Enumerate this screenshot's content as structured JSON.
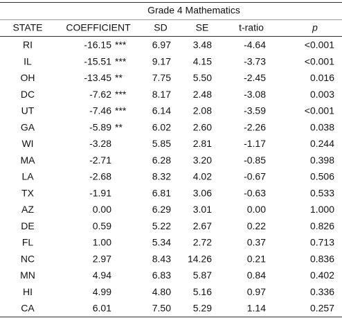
{
  "table": {
    "title": "Grade 4 Mathematics",
    "header": [
      "STATE",
      "COEFFICIENT",
      "SD",
      "SE",
      "t-ratio",
      "p"
    ],
    "rows": [
      {
        "state": "RI",
        "coefficient": "-16.15",
        "stars": "***",
        "sd": "6.97",
        "se": "3.48",
        "t_ratio": "-4.64",
        "p": "<0.001"
      },
      {
        "state": "IL",
        "coefficient": "-15.51",
        "stars": "***",
        "sd": "9.17",
        "se": "4.15",
        "t_ratio": "-3.73",
        "p": "<0.001"
      },
      {
        "state": "OH",
        "coefficient": "-13.45",
        "stars": "**",
        "sd": "7.75",
        "se": "5.50",
        "t_ratio": "-2.45",
        "p": "0.016"
      },
      {
        "state": "DC",
        "coefficient": "-7.62",
        "stars": "***",
        "sd": "8.17",
        "se": "2.48",
        "t_ratio": "-3.08",
        "p": "0.003"
      },
      {
        "state": "UT",
        "coefficient": "-7.46",
        "stars": "***",
        "sd": "6.14",
        "se": "2.08",
        "t_ratio": "-3.59",
        "p": "<0.001"
      },
      {
        "state": "GA",
        "coefficient": "-5.89",
        "stars": "**",
        "sd": "6.02",
        "se": "2.60",
        "t_ratio": "-2.26",
        "p": "0.038"
      },
      {
        "state": "WI",
        "coefficient": "-3.28",
        "sd": "5.85",
        "se": "2.81",
        "t_ratio": "-1.17",
        "p": "0.244"
      },
      {
        "state": "MA",
        "coefficient": "-2.71",
        "sd": "6.28",
        "se": "3.20",
        "t_ratio": "-0.85",
        "p": "0.398"
      },
      {
        "state": "LA",
        "coefficient": "-2.68",
        "sd": "8.32",
        "se": "4.02",
        "t_ratio": "-0.67",
        "p": "0.506"
      },
      {
        "state": "TX",
        "coefficient": "-1.91",
        "sd": "6.81",
        "se": "3.06",
        "t_ratio": "-0.63",
        "p": "0.533"
      },
      {
        "state": "AZ",
        "coefficient": "0.00",
        "sd": "6.29",
        "se": "3.01",
        "t_ratio": "0.00",
        "p": "1.000"
      },
      {
        "state": "DE",
        "coefficient": "0.59",
        "sd": "5.22",
        "se": "2.67",
        "t_ratio": "0.22",
        "p": "0.826"
      },
      {
        "state": "FL",
        "coefficient": "1.00",
        "sd": "5.34",
        "se": "2.72",
        "t_ratio": "0.37",
        "p": "0.713"
      },
      {
        "state": "NC",
        "coefficient": "2.97",
        "sd": "8.43",
        "se": "14.26",
        "t_ratio": "0.21",
        "p": "0.836"
      },
      {
        "state": "MN",
        "coefficient": "4.94",
        "sd": "6.83",
        "se": "5.87",
        "t_ratio": "0.84",
        "p": "0.402"
      },
      {
        "state": "HI",
        "coefficient": "4.99",
        "sd": "4.80",
        "se": "5.16",
        "t_ratio": "0.97",
        "p": "0.336"
      },
      {
        "state": "CA",
        "coefficient": "6.01",
        "sd": "7.50",
        "se": "5.29",
        "t_ratio": "1.14",
        "p": "0.257"
      }
    ]
  }
}
